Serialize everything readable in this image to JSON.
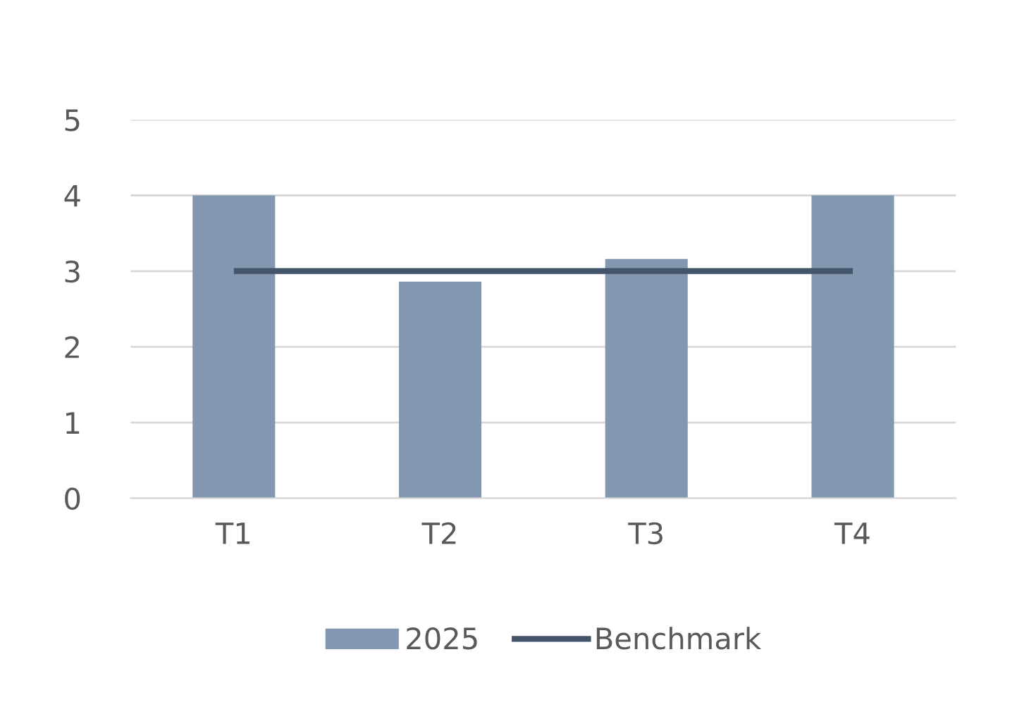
{
  "chart_data": {
    "type": "bar",
    "categories": [
      "T1",
      "T2",
      "T3",
      "T4"
    ],
    "series": [
      {
        "name": "2025",
        "color": "#8497b0",
        "values": [
          4.0,
          2.86,
          3.16,
          4.0
        ]
      },
      {
        "name": "Benchmark",
        "type": "line",
        "color": "#44546a",
        "values": [
          3,
          3,
          3,
          3
        ]
      }
    ],
    "ylim": [
      0,
      5
    ],
    "yticks": [
      0,
      1,
      2,
      3,
      4,
      5
    ],
    "grid": "y",
    "legend": "bottom",
    "marker": "none",
    "line_style": "solid"
  }
}
